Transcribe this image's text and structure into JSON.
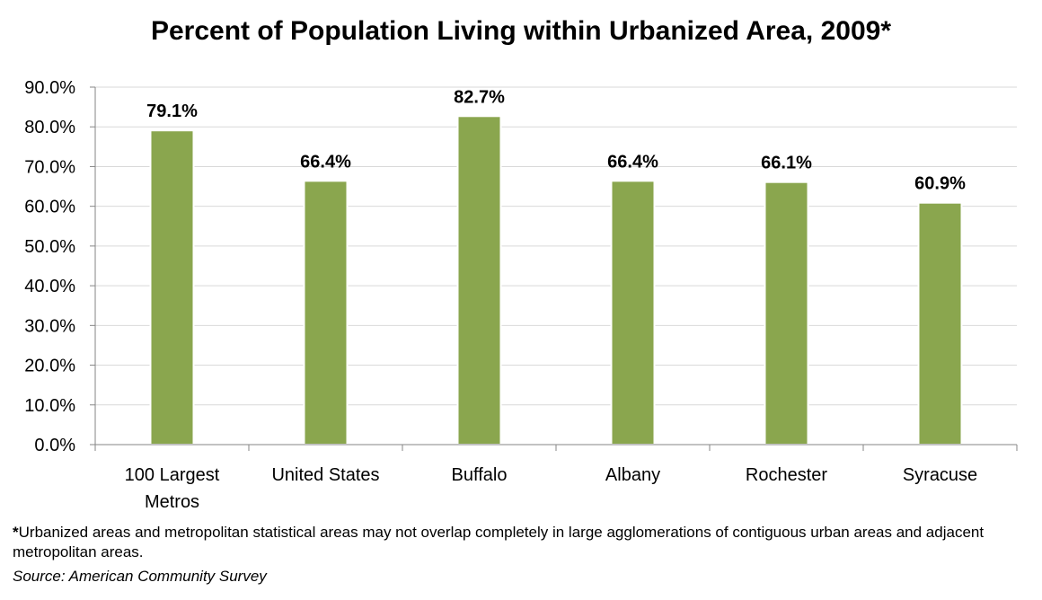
{
  "chart_data": {
    "type": "bar",
    "title": "Percent of Population Living within Urbanized Area, 2009*",
    "categories": [
      "100 Largest Metros",
      "United States",
      "Buffalo",
      "Albany",
      "Rochester",
      "Syracuse"
    ],
    "category_lines": [
      [
        "100 Largest",
        "Metros"
      ],
      [
        "United States"
      ],
      [
        "Buffalo"
      ],
      [
        "Albany"
      ],
      [
        "Rochester"
      ],
      [
        "Syracuse"
      ]
    ],
    "values": [
      79.1,
      66.4,
      82.7,
      66.4,
      66.1,
      60.9
    ],
    "data_labels": [
      "79.1%",
      "66.4%",
      "82.7%",
      "66.4%",
      "66.1%",
      "60.9%"
    ],
    "ylim": [
      0,
      90
    ],
    "yticks": [
      0,
      10,
      20,
      30,
      40,
      50,
      60,
      70,
      80,
      90
    ],
    "ytick_labels": [
      "0.0%",
      "10.0%",
      "20.0%",
      "30.0%",
      "40.0%",
      "50.0%",
      "60.0%",
      "70.0%",
      "80.0%",
      "90.0%"
    ],
    "xlabel": "",
    "ylabel": "",
    "grid": true,
    "legend": "none",
    "colors": {
      "bar_fill": "#8aa64e",
      "bar_edge": "#ffffff",
      "grid": "#d9d9d9",
      "axis": "#868686"
    }
  },
  "notes": {
    "footnote_star": "*",
    "footnote_text": "Urbanized areas and metropolitan statistical areas may not overlap completely in large agglomerations of contiguous urban areas and adjacent metropolitan areas.",
    "source": "Source: American Community Survey"
  }
}
